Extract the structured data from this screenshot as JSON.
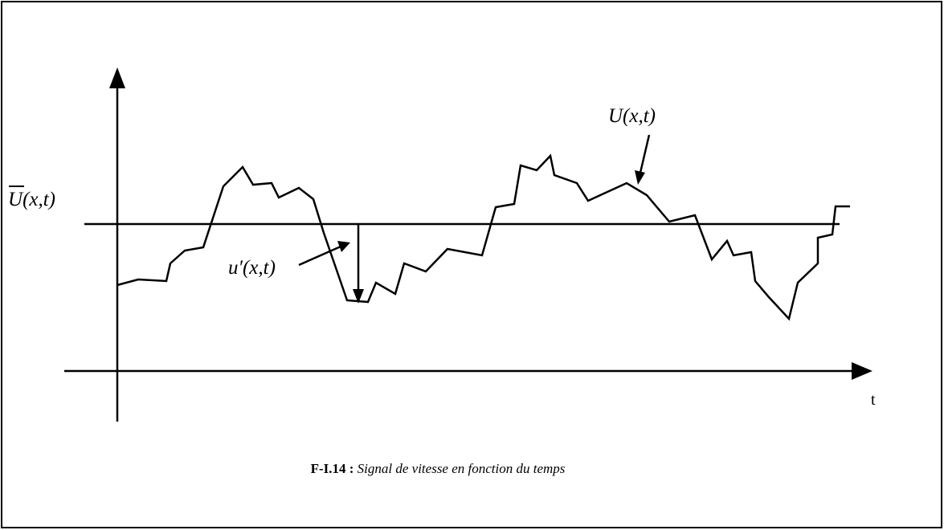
{
  "signal_label": "U(x,t)",
  "mean_label": {
    "symbol": "U",
    "args": "(x,t)"
  },
  "fluctuation_label": "u′(x,t)",
  "time_axis_label": "t",
  "caption": {
    "number": "F-I.14 :",
    "text": "Signal de vitesse en fonction du temps"
  }
}
